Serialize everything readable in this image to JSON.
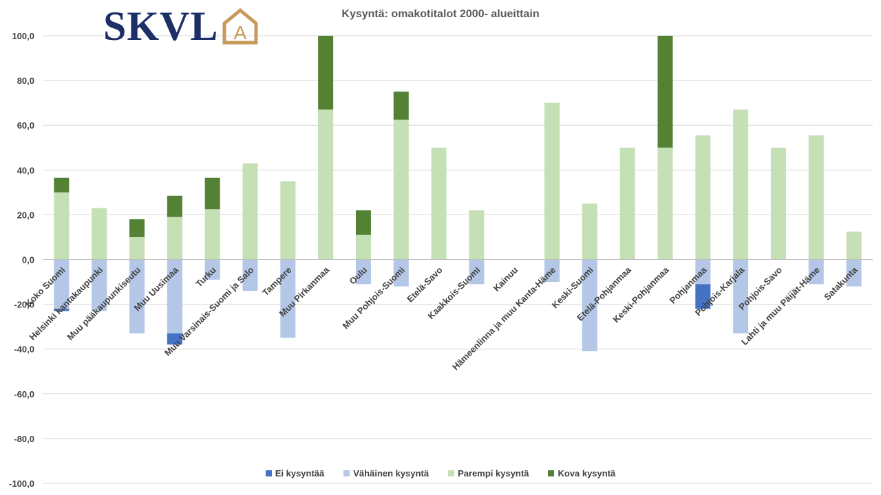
{
  "logo": {
    "text": "SKVL",
    "mark_letter": "A"
  },
  "chart_data": {
    "type": "bar",
    "stacked": true,
    "title": "Kysyntä: omakotitalot 2000- alueittain",
    "xlabel": "",
    "ylabel": "",
    "ylim": [
      -100,
      100
    ],
    "yticks": [
      100,
      80,
      60,
      40,
      20,
      0,
      -20,
      -40,
      -60,
      -80,
      -100
    ],
    "ytick_labels": [
      "100,0",
      "80,0",
      "60,0",
      "40,0",
      "20,0",
      "0,0",
      "-20,0",
      "-40,0",
      "-60,0",
      "-80,0",
      "-100,0"
    ],
    "grid": true,
    "legend_position": "bottom",
    "categories": [
      "Koko Suomi",
      "Helsinki kantakaupunki",
      "Muu pääkaupunkiseutu",
      "Muu Uusimaa",
      "Turku",
      "Muu Varsinais-Suomi ja Salo",
      "Tampere",
      "Muu Pirkanmaa",
      "Oulu",
      "Muu Pohjois-Suomi",
      "Etelä-Savo",
      "Kaakkois-Suomi",
      "Kainuu",
      "Hämeenlinna ja muu Kanta-Häme",
      "Keski-Suomi",
      "Etelä-Pohjanmaa",
      "Keski-Pohjanmaa",
      "Pohjanmaa",
      "Pohjois-Karjala",
      "Pohjois-Savo",
      "Lahti ja muu Päijät-Häme",
      "Satakunta"
    ],
    "series": [
      {
        "name": "Ei kysyntää",
        "color": "#4472c4",
        "values": [
          -1,
          0,
          0,
          -5,
          0,
          0,
          0,
          0,
          0,
          0,
          0,
          0,
          0,
          0,
          0,
          0,
          0,
          -11,
          0,
          0,
          0,
          0
        ]
      },
      {
        "name": "Vähäinen kysyntä",
        "color": "#b4c7e7",
        "values": [
          -22,
          -23,
          -33,
          -33,
          -9,
          -14,
          -35,
          0,
          -11,
          -12,
          0,
          -11,
          0,
          -10,
          -41,
          0,
          0,
          -11,
          -33,
          0,
          -11,
          -12
        ]
      },
      {
        "name": "Parempi kysyntä",
        "color": "#c5e0b4",
        "values": [
          30,
          23,
          10,
          19,
          22.5,
          43,
          35,
          67,
          11,
          62.5,
          50,
          22,
          0,
          70,
          25,
          50,
          50,
          55.5,
          67,
          50,
          55.5,
          12.5
        ]
      },
      {
        "name": "Kova kysyntä",
        "color": "#548235",
        "values": [
          6.5,
          0,
          8,
          9.5,
          14,
          0,
          0,
          33,
          11,
          12.5,
          0,
          0,
          0,
          0,
          0,
          0,
          50,
          0,
          0,
          0,
          0,
          0
        ]
      }
    ]
  }
}
